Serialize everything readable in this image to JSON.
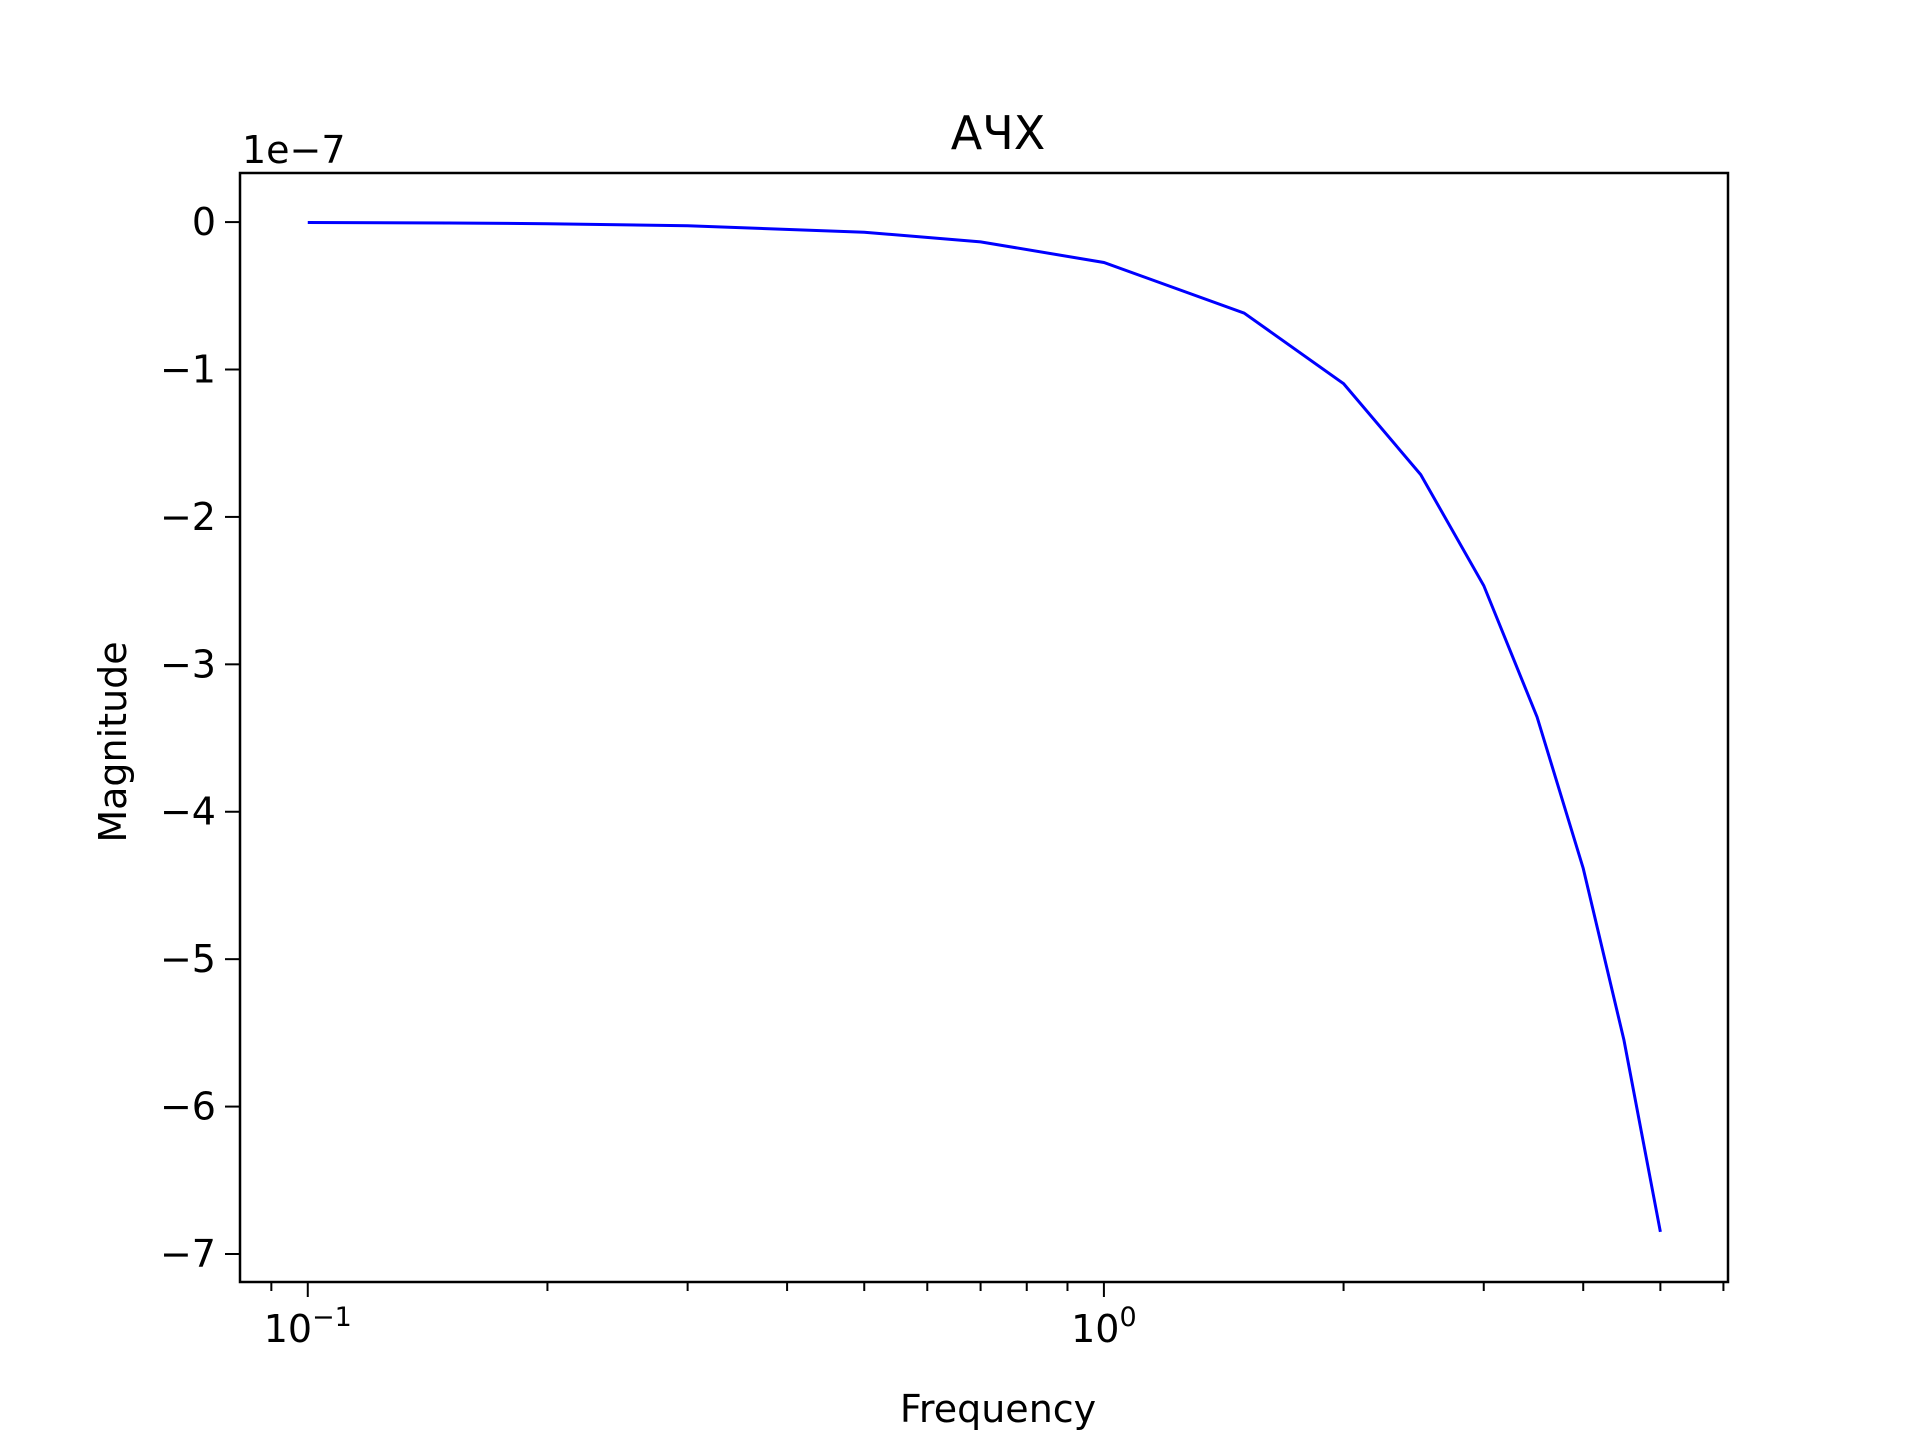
{
  "chart_data": {
    "type": "line",
    "title": "АЧХ",
    "x_label": "Frequency",
    "y_label": "Magnitude",
    "y_offset_label": "1e−7",
    "log_x": true,
    "x": [
      0.1,
      0.15,
      0.2,
      0.3,
      0.5,
      0.7,
      1,
      1.5,
      2,
      2.5,
      3,
      3.5,
      4,
      4.5,
      5
    ],
    "series": [
      {
        "color": "#0000ff",
        "values": [
          -0.003,
          -0.006,
          -0.011,
          -0.025,
          -0.069,
          -0.134,
          -0.274,
          -0.617,
          -1.096,
          -1.713,
          -2.466,
          -3.357,
          -4.384,
          -5.549,
          -6.85
        ]
      }
    ],
    "xlim": [
      0.0822,
      6.08
    ],
    "xticks": [
      {
        "value": 0.1,
        "label": "10",
        "exponent": "−1"
      },
      {
        "value": 1,
        "label": "10",
        "exponent": "0"
      }
    ],
    "xminorticks": [
      0.09,
      0.2,
      0.3,
      0.4,
      0.5,
      0.6,
      0.7,
      0.8,
      0.9,
      2,
      3,
      4,
      5,
      6
    ],
    "ylim": [
      -7.19,
      0.333
    ],
    "yticks": [
      0,
      {
        "value": -1,
        "label": "−1"
      },
      {
        "value": -2,
        "label": "−2"
      },
      {
        "value": -3,
        "label": "−3"
      },
      {
        "value": -4,
        "label": "−4"
      },
      {
        "value": -5,
        "label": "−5"
      },
      {
        "value": -6,
        "label": "−6"
      },
      {
        "value": -7,
        "label": "−7"
      }
    ],
    "grid": false
  }
}
